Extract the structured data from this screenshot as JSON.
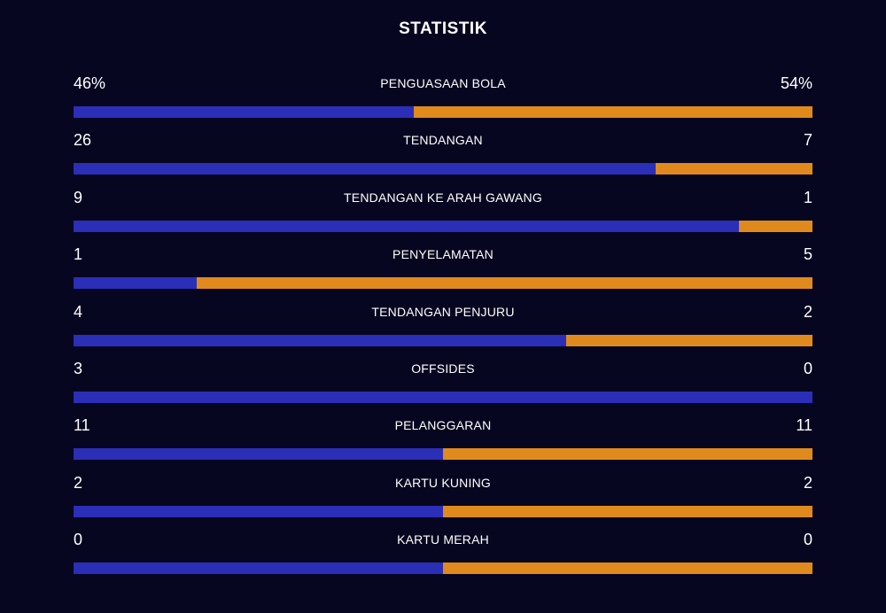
{
  "title": "STATISTIK",
  "colors": {
    "background": "#070620",
    "home": "#2b2eb7",
    "away": "#e08a1e"
  },
  "stats": [
    {
      "label": "PENGUASAAN BOLA",
      "home": "46%",
      "away": "54%",
      "home_value": 46,
      "away_value": 54
    },
    {
      "label": "TENDANGAN",
      "home": "26",
      "away": "7",
      "home_value": 26,
      "away_value": 7
    },
    {
      "label": "TENDANGAN KE ARAH GAWANG",
      "home": "9",
      "away": "1",
      "home_value": 9,
      "away_value": 1
    },
    {
      "label": "PENYELAMATAN",
      "home": "1",
      "away": "5",
      "home_value": 1,
      "away_value": 5
    },
    {
      "label": "TENDANGAN PENJURU",
      "home": "4",
      "away": "2",
      "home_value": 4,
      "away_value": 2
    },
    {
      "label": "OFFSIDES",
      "home": "3",
      "away": "0",
      "home_value": 3,
      "away_value": 0
    },
    {
      "label": "PELANGGARAN",
      "home": "11",
      "away": "11",
      "home_value": 11,
      "away_value": 11
    },
    {
      "label": "KARTU KUNING",
      "home": "2",
      "away": "2",
      "home_value": 2,
      "away_value": 2
    },
    {
      "label": "KARTU MERAH",
      "home": "0",
      "away": "0",
      "home_value": 0,
      "away_value": 0
    }
  ]
}
